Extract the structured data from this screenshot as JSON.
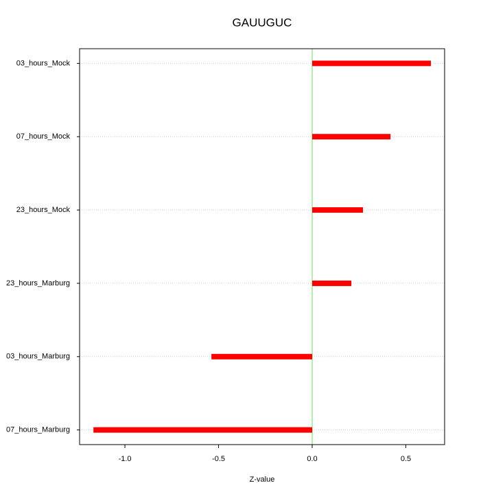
{
  "chart_data": {
    "type": "hbar",
    "title": "GAUUGUC",
    "xlabel": "Z-value",
    "categories": [
      "03_hours_Mock",
      "07_hours_Mock",
      "23_hours_Mock",
      "23_hours_Marburg",
      "03_hours_Marburg",
      "07_hours_Marburg"
    ],
    "values": [
      0.634,
      0.418,
      0.271,
      0.209,
      -0.538,
      -1.168
    ],
    "color": "#ff0000",
    "xlim": [
      -1.242,
      0.707
    ],
    "xticks": [
      {
        "value": -1,
        "label": "-1.0"
      },
      {
        "value": -0.5,
        "label": "-0.5"
      },
      {
        "value": 0,
        "label": "0.0"
      },
      0.5
    ],
    "grid": true
  }
}
